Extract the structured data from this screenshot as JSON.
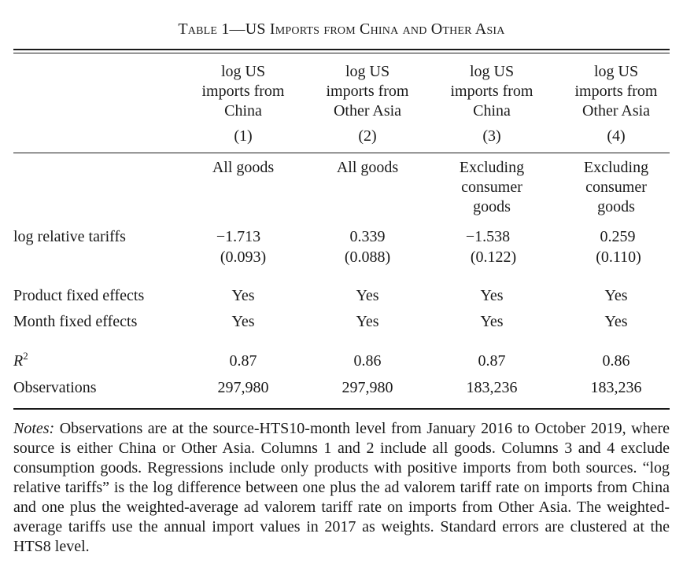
{
  "title": "Table 1—US Imports from China and Other Asia",
  "columns": [
    {
      "head": [
        "log US",
        "imports from",
        "China"
      ],
      "num": "(1)",
      "sample": [
        "All goods"
      ]
    },
    {
      "head": [
        "log US",
        "imports from",
        "Other Asia"
      ],
      "num": "(2)",
      "sample": [
        "All goods"
      ]
    },
    {
      "head": [
        "log US",
        "imports from",
        "China"
      ],
      "num": "(3)",
      "sample": [
        "Excluding",
        "consumer",
        "goods"
      ]
    },
    {
      "head": [
        "log US",
        "imports from",
        "Other Asia"
      ],
      "num": "(4)",
      "sample": [
        "Excluding",
        "consumer",
        "goods"
      ]
    }
  ],
  "rows": {
    "tariff": {
      "label": "log relative tariffs",
      "coef": [
        "−1.713",
        "0.339",
        "−1.538",
        "0.259"
      ],
      "se": [
        "(0.093)",
        "(0.088)",
        "(0.122)",
        "(0.110)"
      ]
    },
    "product_fe": {
      "label": "Product fixed effects",
      "values": [
        "Yes",
        "Yes",
        "Yes",
        "Yes"
      ]
    },
    "month_fe": {
      "label": "Month fixed effects",
      "values": [
        "Yes",
        "Yes",
        "Yes",
        "Yes"
      ]
    },
    "r2": {
      "label_base": "R",
      "label_sup": "2",
      "values": [
        "0.87",
        "0.86",
        "0.87",
        "0.86"
      ]
    },
    "obs": {
      "label": "Observations",
      "values": [
        "297,980",
        "297,980",
        "183,236",
        "183,236"
      ]
    }
  },
  "notes": {
    "label": "Notes:",
    "text": " Observations are at the source-HTS10-month level from January 2016 to October 2019, where source is either China or Other Asia. Columns 1 and 2 include all goods. Columns 3 and 4 exclude consumption goods. Regressions include only products with positive imports from both sources. “log relative tariffs” is the log difference between one plus the ad valorem tariff rate on imports from China and one plus the weighted-average ad valorem tariff rate on imports from Other Asia. The weighted-average tariffs use the annual import values in 2017 as weights. Standard errors are clustered at the HTS8 level."
  }
}
